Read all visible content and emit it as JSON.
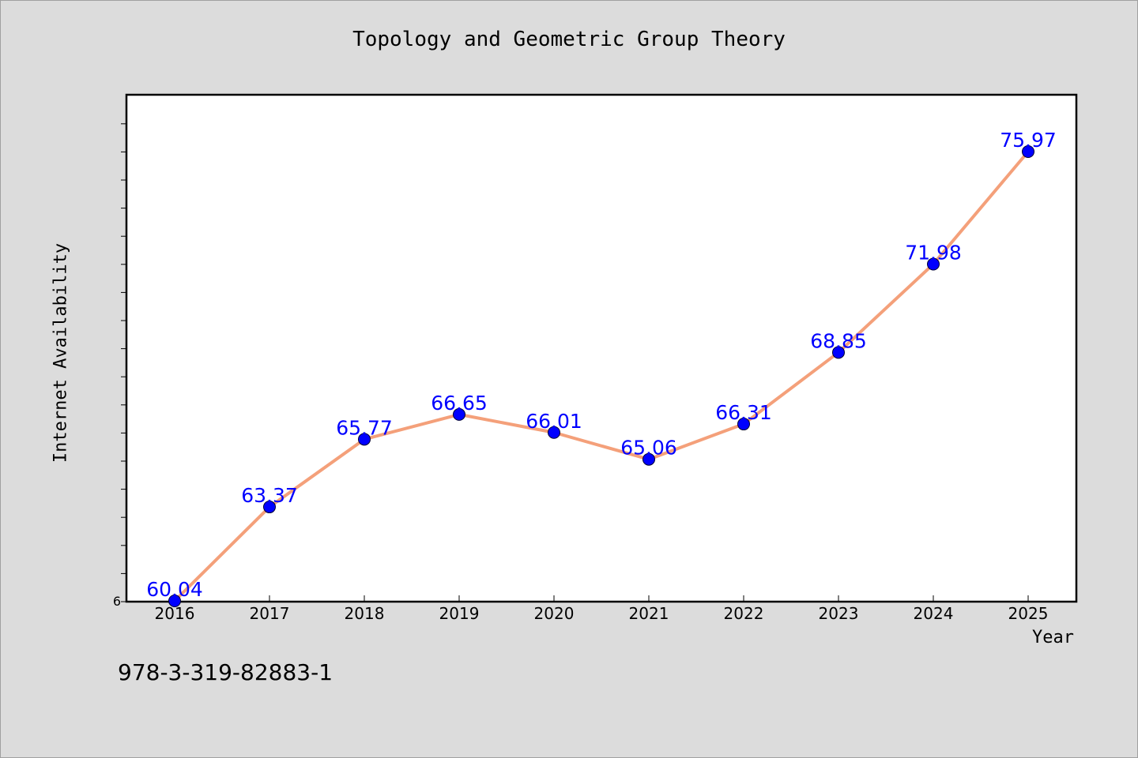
{
  "chart_data": {
    "type": "line",
    "title": "Topology and Geometric Group Theory",
    "xlabel": "Year",
    "ylabel": "Internet Availability",
    "categories": [
      "2016",
      "2017",
      "2018",
      "2019",
      "2020",
      "2021",
      "2022",
      "2023",
      "2024",
      "2025"
    ],
    "series": [
      {
        "values": [
          60.04,
          63.37,
          65.77,
          66.65,
          66.01,
          65.06,
          66.31,
          68.85,
          71.98,
          75.97
        ],
        "data_labels": [
          "60.04",
          "63.37",
          "65.77",
          "66.65",
          "66.01",
          "65.06",
          "66.31",
          "68.85",
          "71.98",
          "75.97"
        ]
      }
    ],
    "y_tick_labels": [
      "6"
    ],
    "ylim": [
      60.04,
      77.0
    ],
    "grid": false,
    "line_color": "#f4a07a",
    "marker_color": "#0000ff",
    "label_color": "#0000ff"
  },
  "footer": {
    "isbn": "978-3-319-82883-1"
  }
}
